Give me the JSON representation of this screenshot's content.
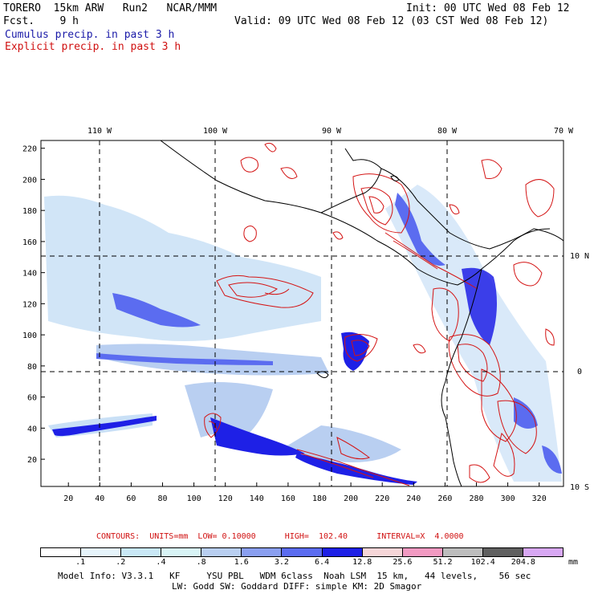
{
  "header": {
    "model": "TORERO  15km ARW   Run2   NCAR/MMM",
    "fcst": "Fcst.    9 h",
    "init": "Init: 00 UTC Wed 08 Feb 12",
    "valid": "Valid: 09 UTC Wed 08 Feb 12 (03 CST Wed 08 Feb 12)",
    "legend_cumulus": "Cumulus precip. in past 3 h",
    "legend_explicit": "Explicit precip. in past 3 h"
  },
  "map": {
    "top_labels": [
      "110 W",
      "100 W",
      "90 W",
      "80 W",
      "70 W"
    ],
    "right_labels": [
      "10 N",
      "0",
      "10 S"
    ],
    "y_ticks": [
      "20",
      "40",
      "60",
      "80",
      "100",
      "120",
      "140",
      "160",
      "180",
      "200",
      "220"
    ],
    "x_ticks": [
      "20",
      "40",
      "60",
      "80",
      "100",
      "120",
      "140",
      "160",
      "180",
      "200",
      "220",
      "240",
      "260",
      "280",
      "300",
      "320"
    ]
  },
  "contours_line": "CONTOURS:  UNITS=mm  LOW= 0.10000      HIGH=  102.40      INTERVAL=X  4.0000",
  "colorbar": {
    "colors": [
      "#ffffff",
      "#e6f4fb",
      "#c9e8f6",
      "#d8f4f6",
      "#b9cff1",
      "#8a9ff0",
      "#5b6cf0",
      "#1e20e6",
      "#f6d6d8",
      "#f29ac2",
      "#bdbdbd",
      "#606060",
      "#d8a8f4"
    ],
    "labels": [
      ".1",
      ".2",
      ".4",
      ".8",
      "1.6",
      "3.2",
      "6.4",
      "12.8",
      "25.6",
      "51.2",
      "102.4",
      "204.8"
    ],
    "units": "mm"
  },
  "model_info": {
    "line1": "Model Info: V3.3.1   KF     YSU PBL   WDM 6class  Noah LSM  15 km,   44 levels,    56 sec",
    "line2": "LW: Godd SW: Goddard DIFF: simple KM: 2D Smagor"
  }
}
